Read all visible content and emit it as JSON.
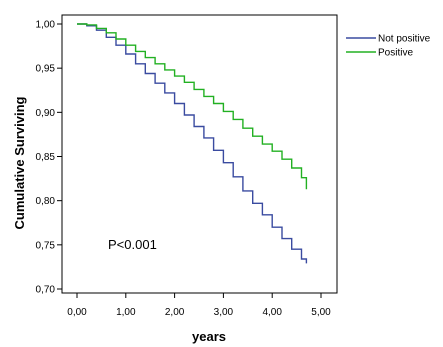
{
  "chart_data": {
    "type": "line",
    "xlabel": "years",
    "ylabel": "Cumulative Surviving",
    "xlim": [
      0,
      5
    ],
    "ylim": [
      0.7,
      1.0
    ],
    "x_ticks": [
      "0,00",
      "1,00",
      "2,00",
      "3,00",
      "4,00",
      "5,00"
    ],
    "y_ticks": [
      "0,70",
      "0,75",
      "0,80",
      "0,85",
      "0,90",
      "0,95",
      "1,00"
    ],
    "grid": false,
    "legend_position": "right",
    "annotation": "P<0.001",
    "series": [
      {
        "name": "Not positive",
        "color": "#3a4ba0",
        "x": [
          0,
          0.2,
          0.4,
          0.6,
          0.8,
          1.0,
          1.2,
          1.4,
          1.6,
          1.8,
          2.0,
          2.2,
          2.4,
          2.6,
          2.8,
          3.0,
          3.2,
          3.4,
          3.6,
          3.8,
          4.0,
          4.2,
          4.4,
          4.6,
          4.7
        ],
        "y": [
          1.0,
          0.998,
          0.993,
          0.985,
          0.976,
          0.966,
          0.955,
          0.944,
          0.933,
          0.922,
          0.91,
          0.897,
          0.884,
          0.871,
          0.857,
          0.843,
          0.827,
          0.811,
          0.797,
          0.784,
          0.77,
          0.757,
          0.745,
          0.734,
          0.729
        ]
      },
      {
        "name": "Positive",
        "color": "#22b022",
        "x": [
          0,
          0.2,
          0.4,
          0.6,
          0.8,
          1.0,
          1.2,
          1.4,
          1.6,
          1.8,
          2.0,
          2.2,
          2.4,
          2.6,
          2.8,
          3.0,
          3.2,
          3.4,
          3.6,
          3.8,
          4.0,
          4.2,
          4.4,
          4.6,
          4.7
        ],
        "y": [
          1.0,
          0.999,
          0.995,
          0.99,
          0.983,
          0.976,
          0.969,
          0.962,
          0.955,
          0.948,
          0.941,
          0.934,
          0.926,
          0.918,
          0.91,
          0.901,
          0.892,
          0.882,
          0.873,
          0.864,
          0.856,
          0.847,
          0.837,
          0.826,
          0.813
        ]
      }
    ]
  }
}
